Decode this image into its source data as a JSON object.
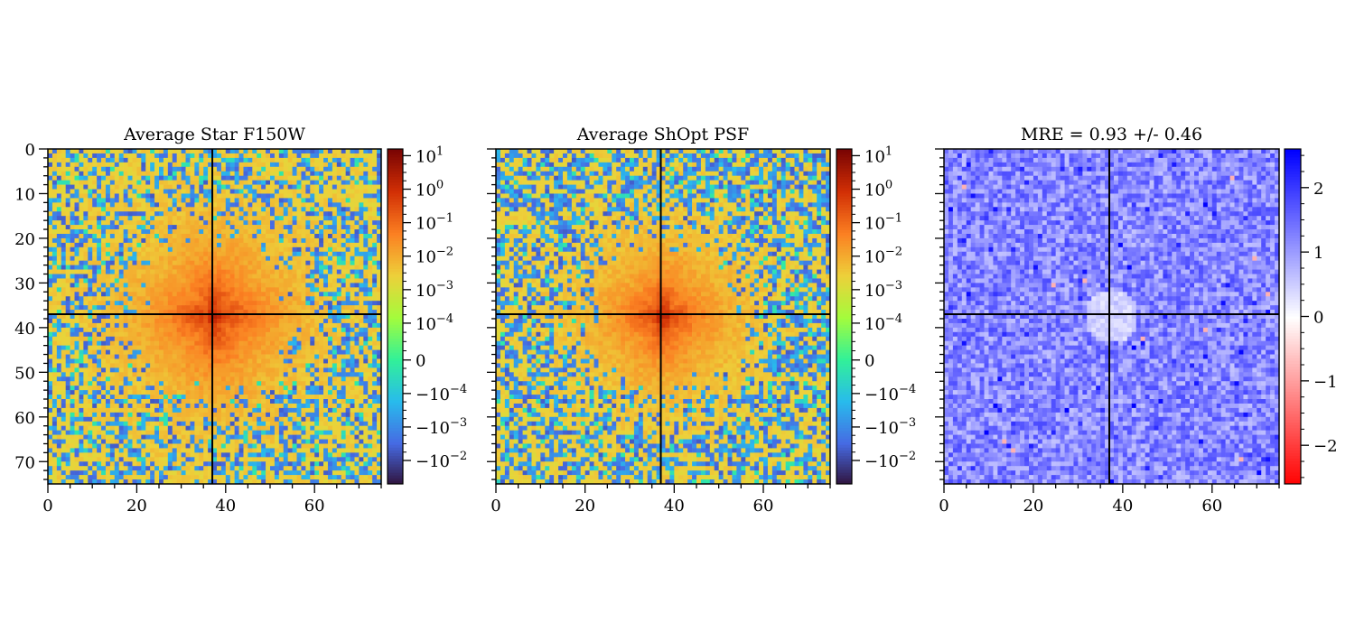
{
  "chart_data": [
    {
      "type": "heatmap",
      "title": "Average Star F150W",
      "xlabel": "",
      "ylabel": "",
      "xlim": [
        0,
        75
      ],
      "ylim": [
        75,
        0
      ],
      "x_ticks": [
        {
          "value": 0,
          "label": "0"
        },
        {
          "value": 20,
          "label": "20"
        },
        {
          "value": 40,
          "label": "40"
        },
        {
          "value": 60,
          "label": "60"
        }
      ],
      "y_ticks": [
        {
          "value": 0,
          "label": "0"
        },
        {
          "value": 10,
          "label": "10"
        },
        {
          "value": 20,
          "label": "20"
        },
        {
          "value": 30,
          "label": "30"
        },
        {
          "value": 40,
          "label": "40"
        },
        {
          "value": 50,
          "label": "50"
        },
        {
          "value": 60,
          "label": "60"
        },
        {
          "value": 70,
          "label": "70"
        }
      ],
      "crosshair": {
        "x": 37,
        "y": 37
      },
      "colormap": "turbo",
      "color_scale": "symlog",
      "colorbar_ticks": [
        {
          "label": "10^1",
          "base": "10",
          "exp": "1"
        },
        {
          "label": "10^0",
          "base": "10",
          "exp": "0"
        },
        {
          "label": "10^-1",
          "base": "10",
          "exp": "−1"
        },
        {
          "label": "10^-2",
          "base": "10",
          "exp": "−2"
        },
        {
          "label": "10^-3",
          "base": "10",
          "exp": "−3"
        },
        {
          "label": "10^-4",
          "base": "10",
          "exp": "−4"
        },
        {
          "label": "0",
          "base": "0",
          "exp": ""
        },
        {
          "label": "-10^-4",
          "base": "−10",
          "exp": "−4"
        },
        {
          "label": "-10^-3",
          "base": "−10",
          "exp": "−3"
        },
        {
          "label": "-10^-2",
          "base": "−10",
          "exp": "−2"
        }
      ]
    },
    {
      "type": "heatmap",
      "title": "Average ShOpt PSF",
      "xlabel": "",
      "ylabel": "",
      "xlim": [
        0,
        75
      ],
      "ylim": [
        75,
        0
      ],
      "x_ticks": [
        {
          "value": 0,
          "label": "0"
        },
        {
          "value": 20,
          "label": "20"
        },
        {
          "value": 40,
          "label": "40"
        },
        {
          "value": 60,
          "label": "60"
        }
      ],
      "crosshair": {
        "x": 37,
        "y": 37
      },
      "colormap": "turbo",
      "color_scale": "symlog",
      "colorbar_ticks": [
        {
          "label": "10^1",
          "base": "10",
          "exp": "1"
        },
        {
          "label": "10^0",
          "base": "10",
          "exp": "0"
        },
        {
          "label": "10^-1",
          "base": "10",
          "exp": "−1"
        },
        {
          "label": "10^-2",
          "base": "10",
          "exp": "−2"
        },
        {
          "label": "10^-3",
          "base": "10",
          "exp": "−3"
        },
        {
          "label": "10^-4",
          "base": "10",
          "exp": "−4"
        },
        {
          "label": "0",
          "base": "0",
          "exp": ""
        },
        {
          "label": "-10^-4",
          "base": "−10",
          "exp": "−4"
        },
        {
          "label": "-10^-3",
          "base": "−10",
          "exp": "−3"
        },
        {
          "label": "-10^-2",
          "base": "−10",
          "exp": "−2"
        }
      ]
    },
    {
      "type": "heatmap",
      "title": "MRE = 0.93 +/- 0.46",
      "xlabel": "",
      "ylabel": "",
      "xlim": [
        0,
        75
      ],
      "ylim": [
        75,
        0
      ],
      "x_ticks": [
        {
          "value": 0,
          "label": "0"
        },
        {
          "value": 20,
          "label": "20"
        },
        {
          "value": 40,
          "label": "40"
        },
        {
          "value": 60,
          "label": "60"
        }
      ],
      "crosshair": {
        "x": 37,
        "y": 37
      },
      "colormap": "bwr_r",
      "color_range": [
        -2.6,
        2.6
      ],
      "colorbar_ticks": [
        {
          "value": 2,
          "label": "2"
        },
        {
          "value": 1,
          "label": "1"
        },
        {
          "value": 0,
          "label": "0"
        },
        {
          "value": -1,
          "label": "−1"
        },
        {
          "value": -2,
          "label": "−2"
        }
      ]
    }
  ]
}
